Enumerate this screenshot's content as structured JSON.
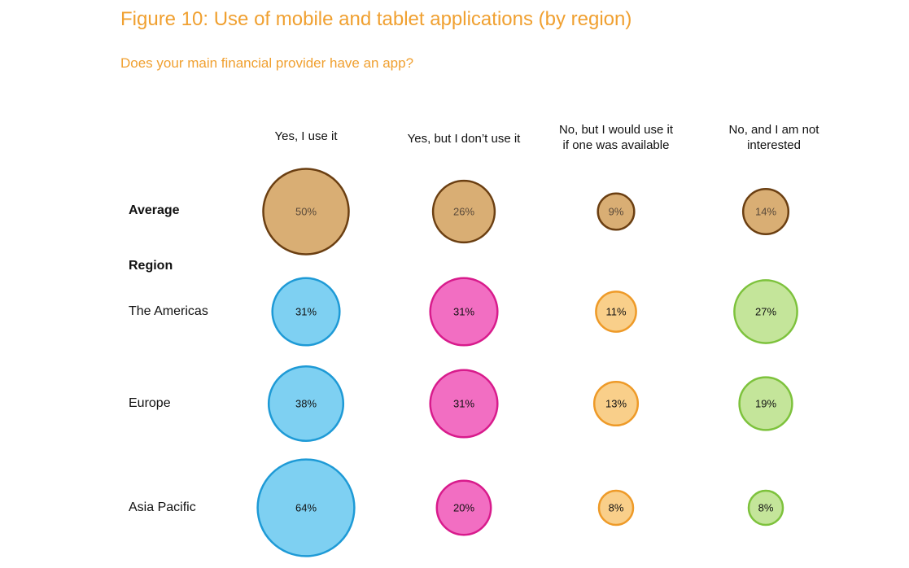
{
  "header": {
    "title": "Figure 10: Use of mobile and tablet applications (by region)",
    "subtitle": "Does your main financial provider have an app?"
  },
  "columns": [
    {
      "line1": "Yes, I use it",
      "line2": ""
    },
    {
      "line1": "Yes, but I don’t use it",
      "line2": ""
    },
    {
      "line1": "No, but I would use it",
      "line2": "if one was available"
    },
    {
      "line1": "No, and I am not",
      "line2": "interested"
    }
  ],
  "section_label": "Region",
  "rows": [
    {
      "label": "Average",
      "bold": true
    },
    {
      "label": "The Americas",
      "bold": false
    },
    {
      "label": "Europe",
      "bold": false
    },
    {
      "label": "Asia Pacific",
      "bold": false
    }
  ],
  "colors": {
    "title": "#F0A030",
    "average_fill": "#D9AE74",
    "average_stroke": "#6B3F12",
    "col1_fill": "#7ED0F2",
    "col1_stroke": "#1E9AD6",
    "col2_fill": "#F26EC2",
    "col2_stroke": "#D81B8C",
    "col3_fill": "#F9CF8A",
    "col3_stroke": "#EE9A28",
    "col4_fill": "#C4E59A",
    "col4_stroke": "#7DC23C"
  },
  "chart_data": {
    "type": "bubble-matrix",
    "title": "Figure 10: Use of mobile and tablet applications (by region)",
    "subtitle": "Does your main financial provider have an app?",
    "categories": [
      "Yes, I use it",
      "Yes, but I don’t use it",
      "No, but I would use it if one was available",
      "No, and I am not interested"
    ],
    "series": [
      {
        "name": "Average",
        "values": [
          50,
          26,
          9,
          14
        ],
        "labels": [
          "50%",
          "26%",
          "9%",
          "14%"
        ]
      },
      {
        "name": "The Americas",
        "values": [
          31,
          31,
          11,
          27
        ],
        "labels": [
          "31%",
          "31%",
          "11%",
          "27%"
        ]
      },
      {
        "name": "Europe",
        "values": [
          38,
          31,
          13,
          19
        ],
        "labels": [
          "38%",
          "31%",
          "13%",
          "19%"
        ]
      },
      {
        "name": "Asia Pacific",
        "values": [
          64,
          20,
          8,
          8
        ],
        "labels": [
          "64%",
          "20%",
          "8%",
          "8%"
        ]
      }
    ],
    "unit": "%"
  }
}
